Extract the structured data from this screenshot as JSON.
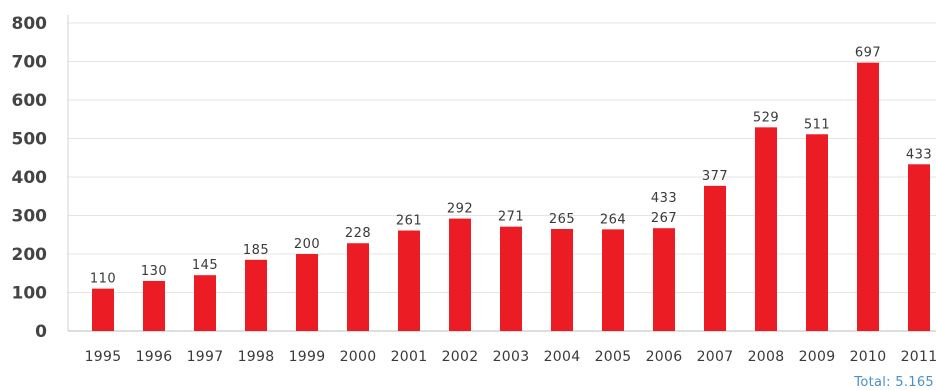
{
  "chart_data": {
    "type": "bar",
    "categories": [
      "1995",
      "1996",
      "1997",
      "1998",
      "1999",
      "2000",
      "2001",
      "2002",
      "2003",
      "2004",
      "2005",
      "2006",
      "2007",
      "2008",
      "2009",
      "2010",
      "2011"
    ],
    "values": [
      110,
      130,
      145,
      185,
      200,
      228,
      261,
      292,
      271,
      265,
      264,
      267,
      377,
      529,
      511,
      697,
      433
    ],
    "data_labels": [
      "110",
      "130",
      "145",
      "185",
      "200",
      "228",
      "261",
      "292",
      "271",
      "265",
      "264",
      "267",
      "377",
      "529",
      "511",
      "697",
      "433"
    ],
    "extra_annotations": [
      {
        "category": "2006",
        "text": "433"
      }
    ],
    "yticks": [
      0,
      100,
      200,
      300,
      400,
      500,
      600,
      700,
      800
    ],
    "ylim": [
      0,
      800
    ],
    "grid": true,
    "bar_color": "#ec1c24",
    "total_label": "Total: 5.165",
    "title": "",
    "xlabel": "",
    "ylabel": ""
  }
}
